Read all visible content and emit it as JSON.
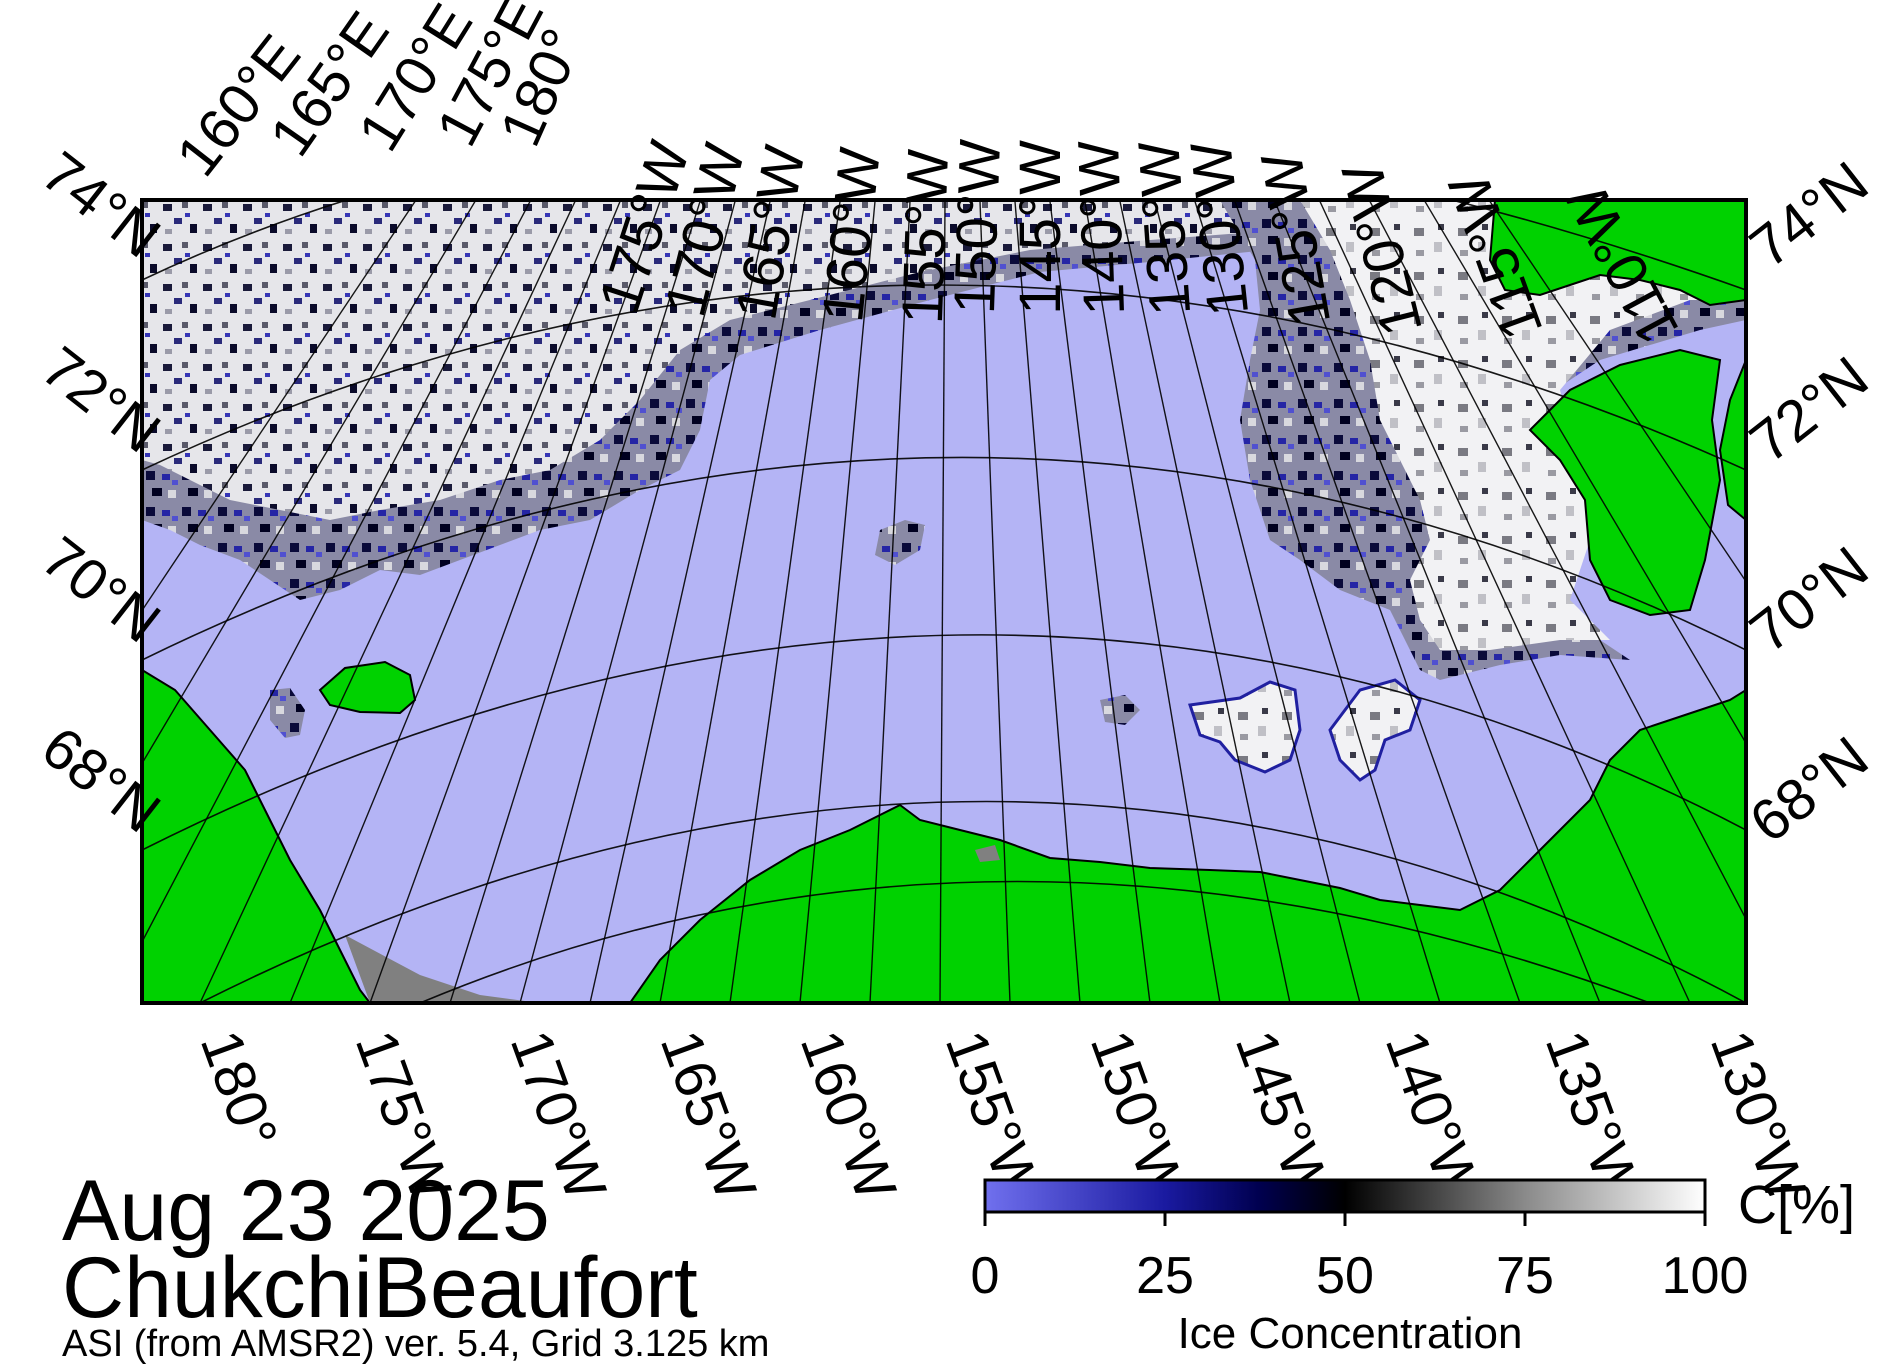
{
  "map": {
    "date": "Aug 23 2025",
    "region": "ChukchiBeaufort",
    "source": "ASI (from AMSR2) ver. 5.4,  Grid 3.125 km",
    "top_lon_labels": [
      "160°E",
      "165°E",
      "170°E",
      "175°E",
      "180°",
      "175°W",
      "170°W",
      "165°W",
      "160°W",
      "155°W",
      "150°W",
      "145°W",
      "140°W",
      "135°W",
      "130°W",
      "125°W",
      "120°W",
      "115°W",
      "110°W"
    ],
    "bottom_lon_labels": [
      "180°",
      "175°W",
      "170°W",
      "165°W",
      "160°W",
      "155°W",
      "150°W",
      "145°W",
      "140°W",
      "135°W",
      "130°W"
    ],
    "left_lat_labels": [
      "74°N",
      "72°N",
      "70°N",
      "68°N"
    ],
    "right_lat_labels": [
      "74°N",
      "72°N",
      "70°N",
      "68°N"
    ],
    "colors": {
      "open_water": "#b4b4f5",
      "land": "#00d200",
      "no_data": "#808080",
      "ice_low": "#6a6ae8",
      "ice_mid": "#00005a",
      "ice_high": "#ffffff"
    }
  },
  "colorbar": {
    "title": "Ice Concentration",
    "unit": "C[%]",
    "ticks": [
      "0",
      "25",
      "50",
      "75",
      "100"
    ],
    "range": [
      0,
      100
    ]
  }
}
